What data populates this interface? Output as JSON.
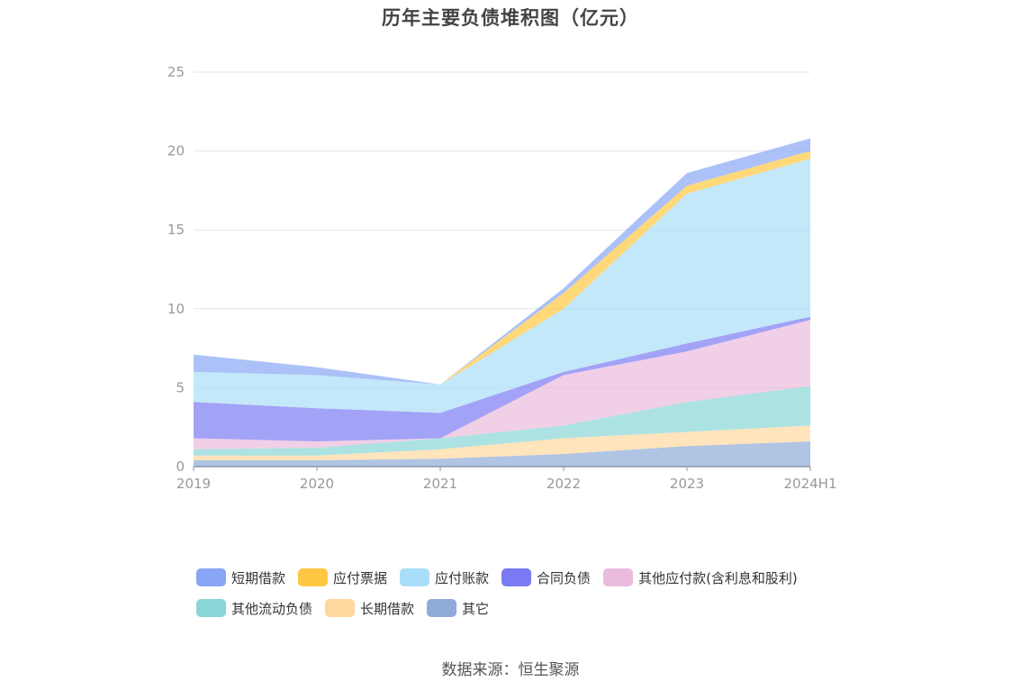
{
  "title": "历年主要负债堆积图（亿元）",
  "source": "数据来源：恒生聚源",
  "chart_data": {
    "type": "area",
    "stacked": true,
    "title": "历年主要负债堆积图（亿元）",
    "xlabel": "",
    "ylabel": "",
    "x": [
      "2019",
      "2020",
      "2021",
      "2022",
      "2023",
      "2024H1"
    ],
    "ylim": [
      0,
      25
    ],
    "yticks": [
      0,
      5,
      10,
      15,
      20,
      25
    ],
    "grid": true,
    "legend_position": "bottom",
    "series": [
      {
        "name": "其它",
        "values": [
          0.4,
          0.4,
          0.5,
          0.8,
          1.3,
          1.6
        ],
        "color": "#8eabd9"
      },
      {
        "name": "长期借款",
        "values": [
          0.3,
          0.3,
          0.6,
          1.0,
          0.9,
          1.0
        ],
        "color": "#ffd8a0"
      },
      {
        "name": "其他流动负债",
        "values": [
          0.4,
          0.5,
          0.7,
          0.8,
          1.9,
          2.5
        ],
        "color": "#8ad5d5"
      },
      {
        "name": "其他应付款(含利息和股利)",
        "values": [
          0.7,
          0.4,
          0.0,
          3.2,
          3.2,
          4.2
        ],
        "color": "#ebbbdd"
      },
      {
        "name": "合同负债",
        "values": [
          2.3,
          2.1,
          1.6,
          0.2,
          0.5,
          0.2
        ],
        "color": "#7b7af2"
      },
      {
        "name": "应付账款",
        "values": [
          1.9,
          2.1,
          1.8,
          4.0,
          9.5,
          10.0
        ],
        "color": "#a9def8"
      },
      {
        "name": "应付票据",
        "values": [
          0.0,
          0.0,
          0.0,
          1.0,
          0.5,
          0.5
        ],
        "color": "#ffc742"
      },
      {
        "name": "短期借款",
        "values": [
          1.1,
          0.5,
          0.0,
          0.3,
          0.8,
          0.8
        ],
        "color": "#88a6f5"
      }
    ]
  },
  "legend_order": [
    "短期借款",
    "应付票据",
    "应付账款",
    "合同负债",
    "其他应付款(含利息和股利)",
    "其他流动负债",
    "长期借款",
    "其它"
  ]
}
